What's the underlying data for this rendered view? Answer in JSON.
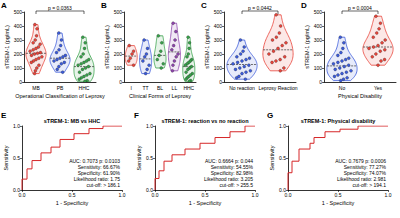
{
  "chart_data": [
    {
      "type": "violin",
      "panel": "A",
      "y_label": "sTREM-1 (pg/mL)",
      "x_label": "Operational Classification of Leprosy",
      "categories": [
        "MB",
        "PB",
        "HHC"
      ],
      "colors": [
        "#e8443a",
        "#3b5bdb",
        "#37a24a"
      ],
      "values": [
        [
          410,
          380,
          330,
          300,
          280,
          270,
          250,
          240,
          230,
          220,
          210,
          205,
          200,
          190,
          180,
          170,
          160,
          150,
          140,
          120,
          100,
          80,
          60
        ],
        [
          350,
          300,
          260,
          230,
          210,
          190,
          180,
          170,
          160,
          150,
          140,
          130,
          110,
          90,
          70
        ],
        [
          320,
          280,
          240,
          200,
          180,
          160,
          150,
          140,
          130,
          120,
          110,
          100,
          90,
          70,
          60,
          50,
          40,
          30,
          20,
          10,
          5
        ]
      ],
      "ylim": [
        0,
        500
      ],
      "yticks": [
        0,
        100,
        200,
        300,
        400,
        500
      ],
      "annotations": [
        {
          "text": "p = 0.0363",
          "from": "MB",
          "to": "HHC"
        }
      ]
    },
    {
      "type": "violin",
      "panel": "B",
      "y_label": "sTREM-1 (pg/mL)",
      "x_label": "Clinical Forms of Leprosy",
      "categories": [
        "I",
        "TT",
        "BL",
        "LL",
        "HHC"
      ],
      "colors": [
        "#e8443a",
        "#3b5bdb",
        "#37a24a",
        "#8e44ad",
        "#37a24a"
      ],
      "values": [
        [
          260,
          220,
          200,
          170,
          150,
          120
        ],
        [
          300,
          240,
          200,
          180,
          150,
          120,
          90,
          60
        ],
        [
          330,
          280,
          220,
          190,
          160,
          130,
          100
        ],
        [
          420,
          360,
          300,
          260,
          230,
          200,
          180,
          150,
          120,
          80
        ],
        [
          320,
          280,
          240,
          200,
          180,
          160,
          150,
          140,
          130,
          120,
          110,
          100,
          90,
          70,
          60,
          50,
          40,
          30,
          20,
          10,
          5
        ]
      ],
      "ylim": [
        0,
        500
      ],
      "yticks": [
        0,
        100,
        200,
        300,
        400,
        500
      ]
    },
    {
      "type": "violin",
      "panel": "C",
      "y_label": "sTREM-1 (pg/mL)",
      "categories": [
        "No reaction",
        "Leprosy Reaction"
      ],
      "colors": [
        "#3b5bdb",
        "#e8443a"
      ],
      "values": [
        [
          300,
          250,
          220,
          200,
          180,
          170,
          160,
          150,
          140,
          130,
          120,
          110,
          100,
          90,
          80,
          70,
          60,
          40,
          30,
          20
        ],
        [
          480,
          400,
          350,
          320,
          300,
          280,
          260,
          240,
          220,
          200,
          180,
          160,
          150,
          140,
          100,
          80
        ]
      ],
      "ylim": [
        0,
        500
      ],
      "yticks": [
        0,
        100,
        200,
        300,
        400,
        500
      ],
      "annotations": [
        {
          "text": "p = 0.0442",
          "from": "No reaction",
          "to": "Leprosy Reaction"
        }
      ]
    },
    {
      "type": "violin",
      "panel": "D",
      "y_label": "sTREM-1 (pg/mL)",
      "x_label": "Physical Disability",
      "categories": [
        "No",
        "Yes"
      ],
      "colors": [
        "#3b5bdb",
        "#e8443a"
      ],
      "values": [
        [
          320,
          280,
          240,
          210,
          190,
          170,
          160,
          150,
          140,
          130,
          120,
          110,
          100,
          90,
          80,
          70,
          60,
          50,
          40,
          30,
          20,
          10
        ],
        [
          470,
          420,
          380,
          350,
          320,
          300,
          280,
          260,
          250,
          240,
          230,
          220,
          200,
          180,
          160,
          150,
          120
        ]
      ],
      "ylim": [
        0,
        500
      ],
      "yticks": [
        0,
        100,
        200,
        300,
        400,
        500
      ],
      "annotations": [
        {
          "text": "p = 0.0004",
          "from": "No",
          "to": "Yes"
        }
      ]
    },
    {
      "type": "line",
      "panel": "E",
      "title": "sTREM-1: MB vs HHC",
      "x_label": "1 - Specificity",
      "y_label": "Sensitivity",
      "series": [
        {
          "color": "#d62728",
          "x": [
            0,
            0,
            0.05,
            0.05,
            0.1,
            0.1,
            0.19,
            0.19,
            0.29,
            0.29,
            0.38,
            0.38,
            0.52,
            0.52,
            0.67,
            0.67,
            0.81,
            0.81,
            1
          ],
          "values": [
            0,
            0.17,
            0.17,
            0.33,
            0.33,
            0.46,
            0.46,
            0.58,
            0.58,
            0.67,
            0.67,
            0.79,
            0.79,
            0.88,
            0.88,
            0.96,
            0.96,
            1,
            1
          ]
        }
      ],
      "xlim": [
        0,
        1
      ],
      "xticks": [
        {
          "value": 0,
          "label": "0.0"
        },
        {
          "value": 0.5,
          "label": "0.5"
        },
        {
          "value": 1,
          "label": "1.0"
        }
      ],
      "ylim": [
        0,
        1
      ],
      "yticks": [
        {
          "value": 0,
          "label": "0.0"
        },
        {
          "value": 0.5,
          "label": "0.5"
        },
        {
          "value": 1,
          "label": "1.0"
        }
      ],
      "annotations": [
        "AUC: 0.7073 p: 0.0103",
        "Sensitivity: 66.67%",
        "Specificity: 61.90%",
        "Likelihood ratio: 1.75",
        "cut-off: > 186.1"
      ]
    },
    {
      "type": "line",
      "panel": "F",
      "title": "sTREM-1: reaction vs no reaction",
      "x_label": "1 - Specificity",
      "y_label": "Sensitivity",
      "series": [
        {
          "color": "#d62728",
          "x": [
            0,
            0,
            0.04,
            0.04,
            0.09,
            0.09,
            0.17,
            0.17,
            0.3,
            0.3,
            0.45,
            0.45,
            0.6,
            0.6,
            0.75,
            0.75,
            0.9,
            0.9,
            1
          ],
          "values": [
            0,
            0.18,
            0.18,
            0.3,
            0.3,
            0.45,
            0.45,
            0.55,
            0.55,
            0.64,
            0.64,
            0.73,
            0.73,
            0.82,
            0.82,
            0.91,
            0.91,
            1,
            1
          ]
        }
      ],
      "xlim": [
        0,
        1
      ],
      "xticks": [
        {
          "value": 0,
          "label": "0.0"
        },
        {
          "value": 0.5,
          "label": "0.5"
        },
        {
          "value": 1,
          "label": "1.0"
        }
      ],
      "ylim": [
        0,
        1
      ],
      "yticks": [
        {
          "value": 0,
          "label": "0.0"
        },
        {
          "value": 0.5,
          "label": "0.5"
        },
        {
          "value": 1,
          "label": "1.0"
        }
      ],
      "annotations": [
        "AUC: 0.6664 p: 0.044",
        "Sensitivity: 54.55%",
        "Specificity: 82.98%",
        "Likelihood ratio: 3.205",
        "cut-off: > 255.5"
      ]
    },
    {
      "type": "line",
      "panel": "G",
      "title": "sTREM-1: Physical disability",
      "x_label": "1 - Specificity",
      "y_label": "Sensitivity",
      "series": [
        {
          "color": "#d62728",
          "x": [
            0,
            0,
            0.04,
            0.04,
            0.11,
            0.11,
            0.22,
            0.22,
            0.26,
            0.26,
            0.37,
            0.37,
            0.52,
            0.52,
            0.7,
            0.7,
            1
          ],
          "values": [
            0,
            0.27,
            0.27,
            0.45,
            0.45,
            0.64,
            0.64,
            0.73,
            0.73,
            0.82,
            0.82,
            0.91,
            0.91,
            0.95,
            0.95,
            1,
            1
          ]
        }
      ],
      "xlim": [
        0,
        1
      ],
      "xticks": [
        {
          "value": 0,
          "label": "0.0"
        },
        {
          "value": 0.5,
          "label": "0.5"
        },
        {
          "value": 1,
          "label": "1.0"
        }
      ],
      "ylim": [
        0,
        1
      ],
      "yticks": [
        {
          "value": 0,
          "label": "0.0"
        },
        {
          "value": 0.5,
          "label": "0.5"
        },
        {
          "value": 1,
          "label": "1.0"
        }
      ],
      "annotations": [
        "AUC: 0.7679 p: 0.0006",
        "Sensitivity: 77.27%",
        "Specificity: 74.07%",
        "Likelihood ratio: 2.981",
        "cut-off: > 194.1"
      ]
    }
  ]
}
